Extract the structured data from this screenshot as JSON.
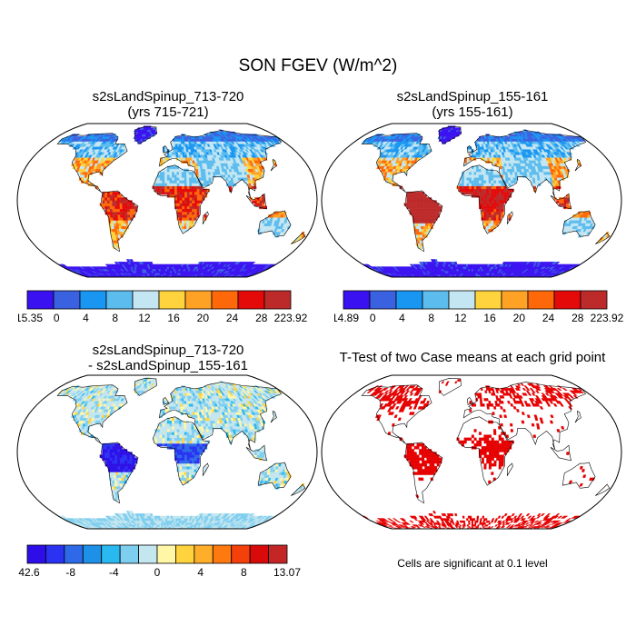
{
  "figure": {
    "title": "SON FGEV (W/m^2)",
    "note": "Cells are significant at 0.1 level"
  },
  "chart_data": [
    {
      "type": "heatmap",
      "title": "s2sLandSpinup_713-720",
      "subtitle": "(yrs 715-721)",
      "colorbar": {
        "colors": [
          "#3a11f0",
          "#3a62e0",
          "#1896f2",
          "#5cbcee",
          "#c3e6f2",
          "#ffd33d",
          "#fea226",
          "#fe6809",
          "#e40a0a",
          "#bd2a2a"
        ],
        "tick_labels": [
          "-15.35",
          "0",
          "4",
          "8",
          "12",
          "16",
          "20",
          "24",
          "28",
          "223.92"
        ]
      }
    },
    {
      "type": "heatmap",
      "title": "s2sLandSpinup_155-161",
      "subtitle": "(yrs 155-161)",
      "colorbar": {
        "colors": [
          "#3a11f0",
          "#3a62e0",
          "#1896f2",
          "#5cbcee",
          "#c3e6f2",
          "#ffd33d",
          "#fea226",
          "#fe6809",
          "#e40a0a",
          "#bd2a2a"
        ],
        "tick_labels": [
          "-14.89",
          "0",
          "4",
          "8",
          "12",
          "16",
          "20",
          "24",
          "28",
          "223.92"
        ]
      }
    },
    {
      "type": "heatmap",
      "title": "s2sLandSpinup_713-720",
      "subtitle": "- s2sLandSpinup_155-161",
      "colorbar": {
        "colors": [
          "#2e0ee8",
          "#2a33f2",
          "#2e6ae8",
          "#1d90e8",
          "#2ab8f0",
          "#7ecef0",
          "#c4e6ee",
          "#fff7a6",
          "#ffd33d",
          "#ffae2a",
          "#fe7a10",
          "#f4400a",
          "#d90a0a",
          "#c42626"
        ],
        "tick_labels": [
          "-42.6",
          "-8",
          "-4",
          "0",
          "4",
          "8",
          "13.07"
        ]
      }
    },
    {
      "type": "heatmap",
      "title": "T-Test of two Case means at each grid point",
      "colors": {
        "significant": "#e60000"
      }
    }
  ]
}
